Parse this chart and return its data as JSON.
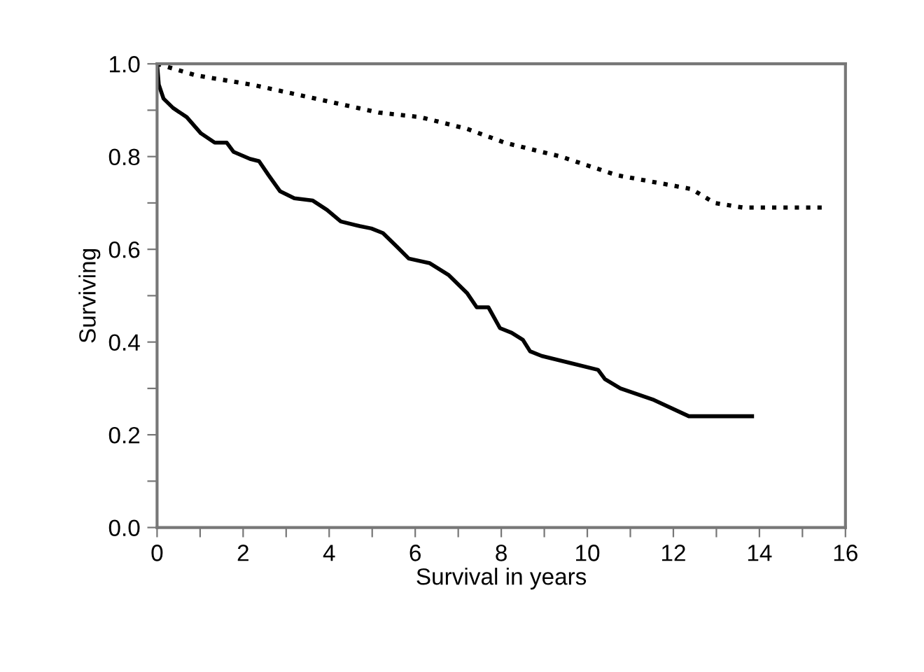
{
  "chart_data": {
    "type": "line",
    "xlabel": "Survival in years",
    "ylabel": "Surviving",
    "xlim": [
      0,
      16
    ],
    "ylim": [
      0,
      1
    ],
    "xticks": [
      0,
      {
        "value": 1,
        "label": null
      },
      2,
      {
        "value": 3,
        "label": null
      },
      4,
      {
        "value": 5,
        "label": null
      },
      6,
      {
        "value": 7,
        "label": null
      },
      8,
      {
        "value": 9,
        "label": null
      },
      10,
      {
        "value": 11,
        "label": null
      },
      12,
      {
        "value": 13,
        "label": null
      },
      14,
      {
        "value": 15,
        "label": null
      },
      16
    ],
    "yticks": [
      {
        "value": 0,
        "label": "0.0"
      },
      {
        "value": 0.1,
        "label": null
      },
      0.2,
      {
        "value": 0.3,
        "label": null
      },
      0.4,
      {
        "value": 0.5,
        "label": null
      },
      0.6,
      {
        "value": 0.7,
        "label": null
      },
      0.8,
      {
        "value": 0.9,
        "label": null
      },
      {
        "value": 1,
        "label": "1.0"
      }
    ],
    "grid": false,
    "legend": false,
    "marker": "none",
    "series": [
      {
        "color": "#000000",
        "line_style": "solid",
        "x": [
          0,
          0.04,
          0.15,
          0.37,
          0.69,
          1.02,
          1.34,
          1.62,
          1.78,
          2.16,
          2.37,
          2.59,
          2.86,
          3.19,
          3.62,
          3.95,
          4.27,
          4.71,
          4.98,
          5.25,
          5.58,
          5.85,
          6.34,
          6.77,
          7.21,
          7.43,
          7.7,
          7.97,
          8.24,
          8.5,
          8.67,
          8.94,
          9.6,
          10.25,
          10.41,
          10.77,
          11.55,
          12.36,
          13.83
        ],
        "values": [
          1.0,
          0.955,
          0.925,
          0.905,
          0.885,
          0.85,
          0.83,
          0.83,
          0.81,
          0.795,
          0.79,
          0.76,
          0.725,
          0.71,
          0.705,
          0.685,
          0.66,
          0.65,
          0.645,
          0.635,
          0.605,
          0.58,
          0.57,
          0.545,
          0.505,
          0.475,
          0.475,
          0.43,
          0.42,
          0.405,
          0.38,
          0.37,
          0.355,
          0.34,
          0.32,
          0.3,
          0.275,
          0.24,
          0.24
        ]
      },
      {
        "color": "#000000",
        "line_style": "dotted",
        "x": [
          0,
          0.91,
          2.21,
          3.19,
          4.17,
          5.15,
          6.12,
          7.2,
          8.08,
          9.38,
          10.36,
          10.68,
          12.42,
          12.96,
          13.62,
          15.46
        ],
        "values": [
          1.0,
          0.975,
          0.955,
          0.935,
          0.915,
          0.895,
          0.885,
          0.86,
          0.83,
          0.8,
          0.77,
          0.76,
          0.73,
          0.7,
          0.69,
          0.69
        ]
      }
    ]
  }
}
